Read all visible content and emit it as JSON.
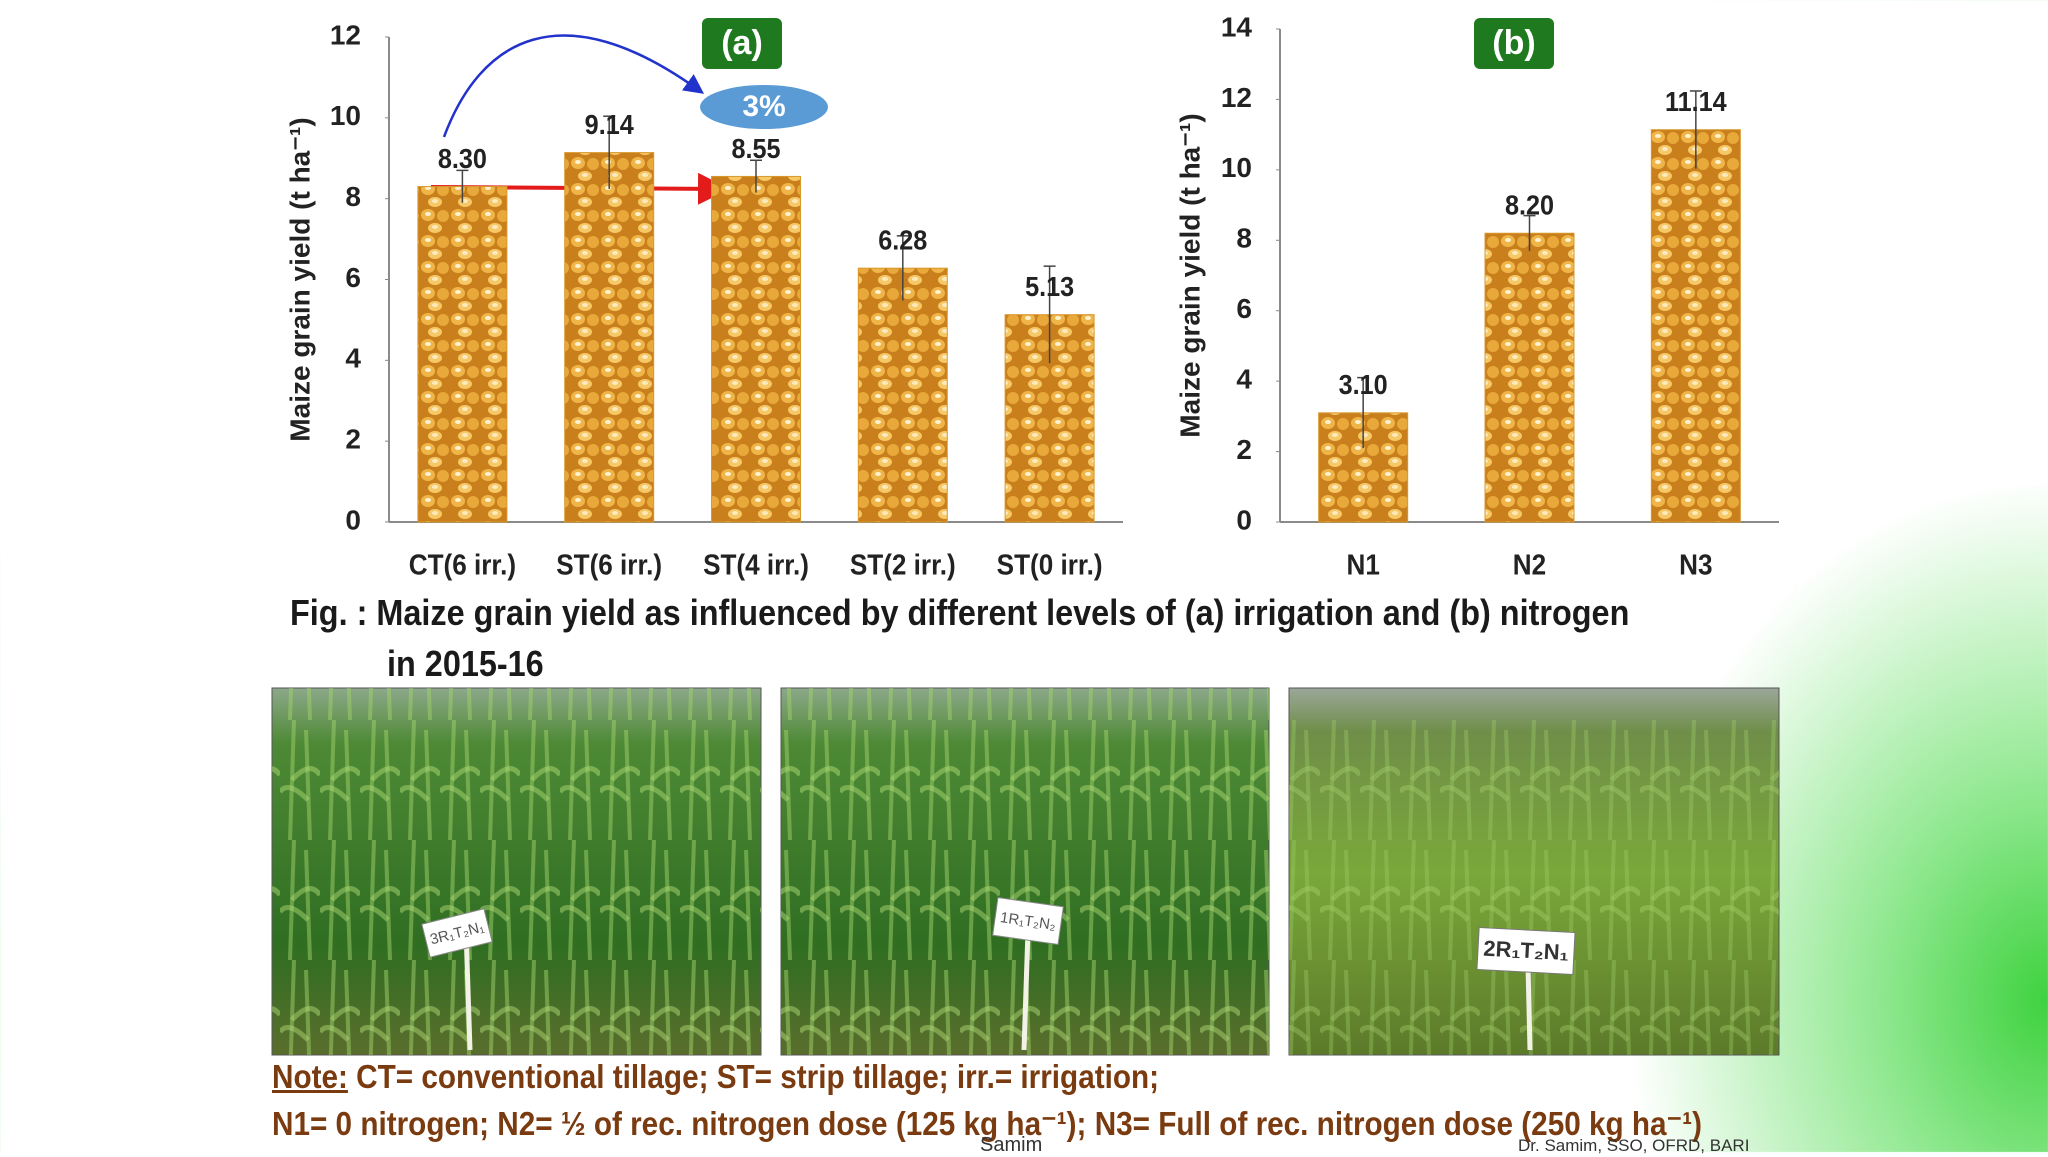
{
  "chart_data": [
    {
      "type": "bar",
      "title": "(a)",
      "annotation": "3%",
      "y_label": "Maize grain yield (t ha⁻¹)",
      "categories": [
        "CT(6 irr.)",
        "ST(6 irr.)",
        "ST(4 irr.)",
        "ST(2 irr.)",
        "ST(0 irr.)"
      ],
      "values": [
        8.3,
        9.14,
        8.55,
        6.28,
        5.13
      ],
      "value_labels": [
        "8.30",
        "9.14",
        "8.55",
        "6.28",
        "5.13"
      ],
      "errors": [
        0.4,
        0.9,
        0.4,
        0.8,
        1.2
      ],
      "color": "#d9982c",
      "ylim": [
        0,
        12
      ],
      "yticks": [
        0,
        2,
        4,
        6,
        8,
        10,
        12
      ]
    },
    {
      "type": "bar",
      "title": "(b)",
      "y_label": "Maize grain yield (t ha⁻¹)",
      "categories": [
        "N1",
        "N2",
        "N3"
      ],
      "values": [
        3.1,
        8.2,
        11.14
      ],
      "value_labels": [
        "3.10",
        "8.20",
        "11.14"
      ],
      "errors": [
        1.0,
        0.5,
        1.1
      ],
      "color": "#d9982c",
      "ylim": [
        0,
        14
      ],
      "yticks": [
        0,
        2,
        4,
        6,
        8,
        10,
        12,
        14
      ]
    }
  ],
  "caption": {
    "line1": "Fig. : Maize grain yield as influenced by different levels of (a) irrigation and (b) nitrogen",
    "line2": "in 2015-16"
  },
  "photos": [
    {
      "label": "3R₁T₂N₁"
    },
    {
      "label": "1R₁T₂N₂"
    },
    {
      "label": "2R₁T₂N₁"
    }
  ],
  "note": {
    "heading": "Note:",
    "line1": "CT= conventional tillage; ST= strip tillage; irr.= irrigation;",
    "line2": "N1= 0 nitrogen; N2= ½ of rec. nitrogen dose (125 kg ha⁻¹); N3= Full of rec. nitrogen dose (250 kg ha⁻¹)"
  },
  "footer": {
    "center": "Samim",
    "right": "Dr. Samim, SSO, OFRD, BARI"
  }
}
